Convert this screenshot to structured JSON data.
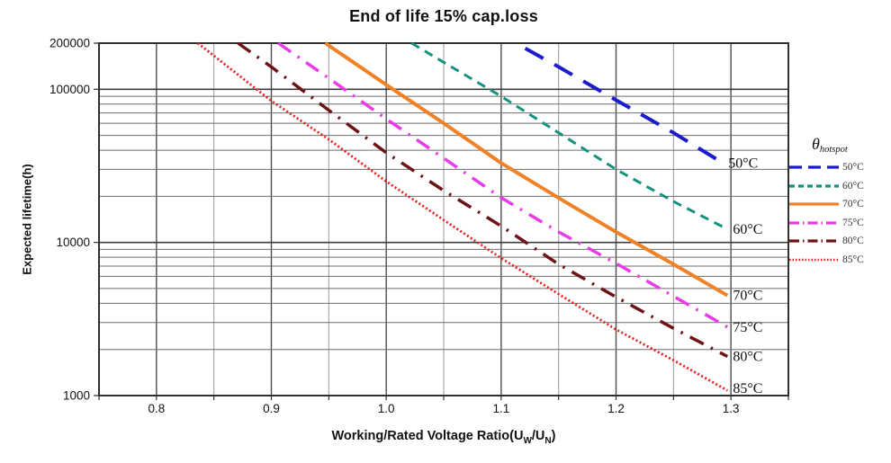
{
  "title": "End of life 15% cap.loss",
  "y_axis_title": "Expected lifetime(h)",
  "x_axis_title_parts": {
    "pre": "Working/Rated Voltage Ratio(U",
    "sub1": "W",
    "mid": "/U",
    "sub2": "N",
    "post": ")"
  },
  "legend": {
    "title_symbol": "θ",
    "title_sub": "hotspot"
  },
  "chart_data": {
    "type": "line",
    "title": "End of life 15% cap.loss",
    "xlabel": "Working/Rated Voltage Ratio(UW/UN)",
    "ylabel": "Expected lifetime(h)",
    "xlim": [
      0.75,
      1.35
    ],
    "ylim": [
      1000,
      200000
    ],
    "yscale": "log",
    "grid": true,
    "legend_position": "right-outside",
    "legend_title": "θ hotspot",
    "x_major_ticks": [
      0.8,
      0.9,
      1.0,
      1.1,
      1.2,
      1.3
    ],
    "x_minor_step": 0.05,
    "y_ticks": [
      {
        "value": 200000,
        "label": "200000"
      },
      {
        "value": 100000,
        "label": "100000"
      },
      {
        "value": 10000,
        "label": "10000"
      },
      {
        "value": 1000,
        "label": "1000"
      }
    ],
    "series": [
      {
        "name": "50°C",
        "color": "#1c1ccd",
        "style": "long-dash",
        "width": 4,
        "points": [
          [
            1.121,
            185000
          ],
          [
            1.15,
            140000
          ],
          [
            1.2,
            85000
          ],
          [
            1.25,
            52000
          ],
          [
            1.293,
            33000
          ]
        ]
      },
      {
        "name": "60°C",
        "color": "#16917e",
        "style": "dash",
        "width": 3,
        "points": [
          [
            1.022,
            200000
          ],
          [
            1.05,
            150000
          ],
          [
            1.1,
            90000
          ],
          [
            1.15,
            52000
          ],
          [
            1.2,
            30000
          ],
          [
            1.25,
            18500
          ],
          [
            1.297,
            12200
          ]
        ]
      },
      {
        "name": "70°C",
        "color": "#ef8227",
        "style": "solid",
        "width": 4,
        "points": [
          [
            0.947,
            200000
          ],
          [
            1.0,
            107000
          ],
          [
            1.05,
            60000
          ],
          [
            1.1,
            33000
          ],
          [
            1.15,
            19500
          ],
          [
            1.2,
            11700
          ],
          [
            1.25,
            7200
          ],
          [
            1.297,
            4500
          ]
        ]
      },
      {
        "name": "75°C",
        "color": "#e93ce9",
        "style": "dash-dot",
        "width": 3.5,
        "points": [
          [
            0.906,
            200000
          ],
          [
            0.95,
            118000
          ],
          [
            1.0,
            64000
          ],
          [
            1.05,
            35500
          ],
          [
            1.1,
            19600
          ],
          [
            1.15,
            11700
          ],
          [
            1.2,
            7300
          ],
          [
            1.25,
            4450
          ],
          [
            1.297,
            2800
          ]
        ]
      },
      {
        "name": "80°C",
        "color": "#6e1315",
        "style": "dash-dot",
        "width": 3.5,
        "points": [
          [
            0.871,
            200000
          ],
          [
            0.9,
            140000
          ],
          [
            0.95,
            73000
          ],
          [
            1.0,
            38500
          ],
          [
            1.05,
            21800
          ],
          [
            1.1,
            12800
          ],
          [
            1.15,
            7200
          ],
          [
            1.2,
            4400
          ],
          [
            1.25,
            2750
          ],
          [
            1.297,
            1800
          ]
        ]
      },
      {
        "name": "85°C",
        "color": "#e32222",
        "style": "dotted",
        "width": 2.8,
        "points": [
          [
            0.836,
            200000
          ],
          [
            0.9,
            84000
          ],
          [
            0.95,
            47000
          ],
          [
            1.0,
            25000
          ],
          [
            1.05,
            14000
          ],
          [
            1.1,
            7900
          ],
          [
            1.15,
            4600
          ],
          [
            1.2,
            2700
          ],
          [
            1.25,
            1700
          ],
          [
            1.297,
            1080
          ]
        ]
      }
    ],
    "curve_end_labels": [
      "50°C",
      "60°C",
      "70°C",
      "75°C",
      "80°C",
      "85°C"
    ]
  }
}
